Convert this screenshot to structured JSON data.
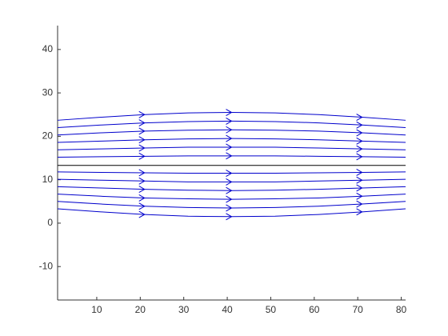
{
  "chart_data": {
    "type": "streamline",
    "x": [
      1,
      11,
      21,
      31,
      41,
      51,
      61,
      71,
      81
    ],
    "series": [
      {
        "color": "#000000",
        "values": [
          13.3,
          13.3,
          13.3,
          13.3,
          13.3,
          13.3,
          13.3,
          13.3,
          13.3
        ]
      },
      {
        "color": "#0000cc",
        "values": [
          15.2,
          15.3,
          15.4,
          15.5,
          15.5,
          15.5,
          15.4,
          15.3,
          15.2
        ]
      },
      {
        "color": "#0000cc",
        "values": [
          16.9,
          17.1,
          17.3,
          17.5,
          17.5,
          17.5,
          17.3,
          17.1,
          16.9
        ]
      },
      {
        "color": "#0000cc",
        "values": [
          18.6,
          18.9,
          19.2,
          19.4,
          19.5,
          19.4,
          19.2,
          18.9,
          18.6
        ]
      },
      {
        "color": "#0000cc",
        "values": [
          20.3,
          20.8,
          21.2,
          21.4,
          21.5,
          21.4,
          21.2,
          20.8,
          20.3
        ]
      },
      {
        "color": "#0000cc",
        "values": [
          22.0,
          22.6,
          23.1,
          23.4,
          23.5,
          23.4,
          23.1,
          22.6,
          22.0
        ]
      },
      {
        "color": "#0000cc",
        "values": [
          23.7,
          24.4,
          25.0,
          25.4,
          25.5,
          25.4,
          25.0,
          24.4,
          23.7
        ]
      },
      {
        "color": "#0000cc",
        "values": [
          11.8,
          11.7,
          11.6,
          11.5,
          11.5,
          11.5,
          11.6,
          11.7,
          11.8
        ]
      },
      {
        "color": "#0000cc",
        "values": [
          10.1,
          9.9,
          9.7,
          9.5,
          9.5,
          9.5,
          9.7,
          9.9,
          10.1
        ]
      },
      {
        "color": "#0000cc",
        "values": [
          8.4,
          8.1,
          7.8,
          7.6,
          7.5,
          7.6,
          7.8,
          8.1,
          8.4
        ]
      },
      {
        "color": "#0000cc",
        "values": [
          6.7,
          6.2,
          5.8,
          5.6,
          5.5,
          5.6,
          5.8,
          6.2,
          6.7
        ]
      },
      {
        "color": "#0000cc",
        "values": [
          5.0,
          4.4,
          3.9,
          3.6,
          3.5,
          3.6,
          3.9,
          4.4,
          5.0
        ]
      },
      {
        "color": "#0000cc",
        "values": [
          3.3,
          2.6,
          2.0,
          1.6,
          1.5,
          1.6,
          2.0,
          2.6,
          3.3
        ]
      }
    ],
    "xlim": [
      1,
      81
    ],
    "ylim": [
      -17.7,
      45.5
    ],
    "xticks": [
      10,
      20,
      30,
      40,
      50,
      60,
      70,
      80
    ],
    "yticks": [
      -10,
      0,
      10,
      20,
      30,
      40
    ]
  }
}
